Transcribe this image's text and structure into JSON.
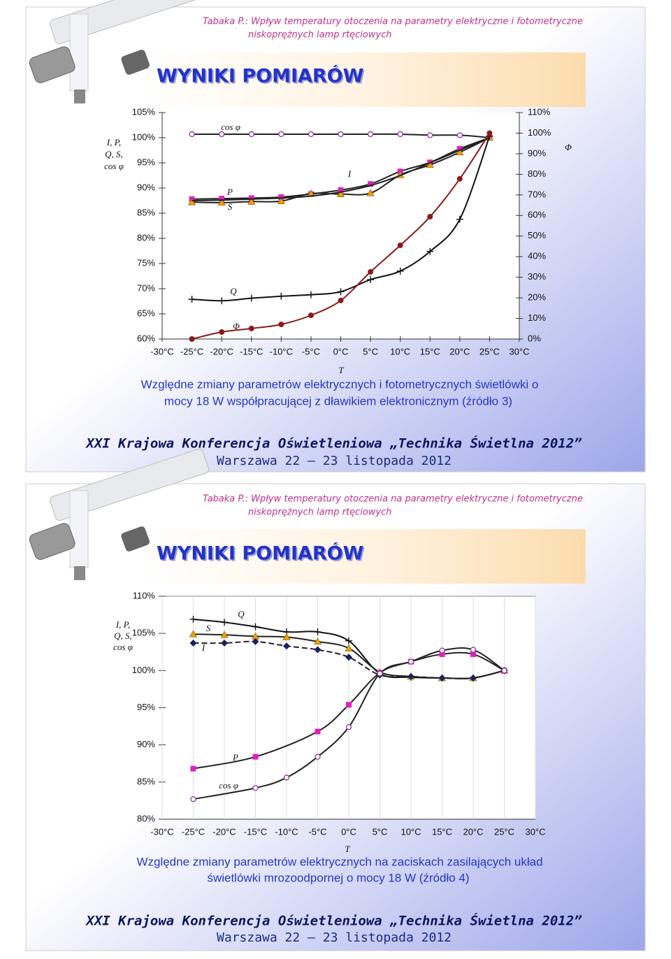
{
  "slides": [
    {
      "header": [
        "Tabaka P.: Wpływ temperatury otoczenia na parametry elektryczne i fotometryczne",
        "niskoprężnych lamp rtęciowych"
      ],
      "title": "WYNIKI POMIARÓW",
      "caption": [
        "Względne zmiany parametrów elektrycznych i fotometrycznych świetlówki o",
        "mocy 18 W współpracującej z dławikiem elektronicznym (źródło 3)"
      ],
      "footer": [
        "XXI Krajowa Konferencja Oświetleniowa „Technika Świetlna 2012”",
        "Warszawa 22 – 23 listopada 2012"
      ]
    },
    {
      "header": [
        "Tabaka P.: Wpływ temperatury otoczenia na parametry elektryczne i fotometryczne",
        "niskoprężnych lamp rtęciowych"
      ],
      "title": "WYNIKI POMIARÓW",
      "caption": [
        "Względne zmiany parametrów elektrycznych na zaciskach zasilających układ",
        "świetlówki mrozoodpornej o mocy 18 W (źródło 4)"
      ],
      "footer": [
        "XXI Krajowa Konferencja Oświetleniowa „Technika Świetlna 2012”",
        "Warszawa 22 – 23 listopada 2012"
      ]
    }
  ],
  "chart_data": [
    {
      "type": "line",
      "x_label": "T",
      "y_label": [
        "I, P,",
        "Q, S,",
        "cos φ"
      ],
      "y2_label": "Φ",
      "xlim": [
        -30,
        30
      ],
      "xticks": [
        {
          "value": -30,
          "label": "-30°C"
        },
        {
          "value": -25,
          "label": "-25°C"
        },
        {
          "value": -20,
          "label": "-20°C"
        },
        {
          "value": -15,
          "label": "-15°C"
        },
        {
          "value": -10,
          "label": "-10°C"
        },
        {
          "value": -5,
          "label": "-5°C"
        },
        {
          "value": 0,
          "label": "0°C"
        },
        {
          "value": 5,
          "label": "5°C"
        },
        {
          "value": 10,
          "label": "10°C"
        },
        {
          "value": 15,
          "label": "15°C"
        },
        {
          "value": 20,
          "label": "20°C"
        },
        {
          "value": 25,
          "label": "25°C"
        },
        {
          "value": 30,
          "label": "30°C"
        }
      ],
      "ylim": [
        60,
        105
      ],
      "yticks": [
        {
          "value": 60,
          "label": "60%"
        },
        {
          "value": 65,
          "label": "65%"
        },
        {
          "value": 70,
          "label": "70%"
        },
        {
          "value": 75,
          "label": "75%"
        },
        {
          "value": 80,
          "label": "80%"
        },
        {
          "value": 85,
          "label": "85%"
        },
        {
          "value": 90,
          "label": "90%"
        },
        {
          "value": 95,
          "label": "95%"
        },
        {
          "value": 100,
          "label": "100%"
        },
        {
          "value": 105,
          "label": "105%"
        }
      ],
      "y2lim": [
        0,
        110
      ],
      "y2ticks": [
        {
          "value": 0,
          "label": "0%"
        },
        {
          "value": 10,
          "label": "10%"
        },
        {
          "value": 20,
          "label": "20%"
        },
        {
          "value": 30,
          "label": "30%"
        },
        {
          "value": 40,
          "label": "40%"
        },
        {
          "value": 50,
          "label": "50%"
        },
        {
          "value": 60,
          "label": "60%"
        },
        {
          "value": 70,
          "label": "70%"
        },
        {
          "value": 80,
          "label": "80%"
        },
        {
          "value": 90,
          "label": "90%"
        },
        {
          "value": 100,
          "label": "100%"
        },
        {
          "value": 110,
          "label": "110%"
        }
      ],
      "series": [
        {
          "name": "cos φ",
          "color": "#8a3a9a",
          "line_color": "#222222",
          "marker": "circle",
          "x": [
            -25,
            -20,
            -15,
            -10,
            -5,
            0,
            5,
            10,
            15,
            20,
            25
          ],
          "values": [
            100.7,
            100.7,
            100.7,
            100.7,
            100.7,
            100.7,
            100.7,
            100.7,
            100.5,
            100.5,
            100
          ]
        },
        {
          "name": "P",
          "color": "#e020c0",
          "line_color": "#222222",
          "marker": "square",
          "x": [
            -25,
            -20,
            -15,
            -10,
            -5,
            0,
            5,
            10,
            15,
            20,
            25
          ],
          "values": [
            87.8,
            87.9,
            88.0,
            88.2,
            88.8,
            89.6,
            90.8,
            93.3,
            95.1,
            97.8,
            100
          ]
        },
        {
          "name": "S",
          "color": "#f0a000",
          "line_color": "#222222",
          "marker": "triangle",
          "x": [
            -25,
            -20,
            -15,
            -10,
            -5,
            0,
            5,
            10,
            15,
            20,
            25
          ],
          "values": [
            87.2,
            87.1,
            87.3,
            87.4,
            88.9,
            88.8,
            89.0,
            92.6,
            94.6,
            97.1,
            100
          ]
        },
        {
          "name": "I",
          "color": "#222222",
          "line_color": "#222222",
          "marker": "none",
          "x": [
            -25,
            -20,
            -15,
            -10,
            -5,
            0,
            5,
            10,
            15,
            20,
            25
          ],
          "values": [
            87.5,
            87.6,
            87.8,
            88.0,
            88.4,
            89.2,
            90.5,
            92.5,
            95,
            97.5,
            100
          ]
        },
        {
          "name": "Q",
          "color": "#111111",
          "line_color": "#111111",
          "marker": "plus",
          "x": [
            -25,
            -20,
            -15,
            -10,
            -5,
            0,
            5,
            10,
            15,
            20,
            25
          ],
          "values": [
            67.9,
            67.6,
            68.1,
            68.5,
            68.8,
            69.4,
            71.8,
            73.5,
            77.4,
            83.8,
            100.3
          ]
        },
        {
          "name": "Φ",
          "color": "#8b1a1a",
          "line_color": "#8b1a1a",
          "marker": "dot",
          "axis": "y2",
          "x": [
            -25,
            -20,
            -15,
            -10,
            -5,
            0,
            5,
            10,
            15,
            20,
            25
          ],
          "values": [
            0,
            3.4,
            5.1,
            7.1,
            11.5,
            18.7,
            32.6,
            45.5,
            59.4,
            77.8,
            100
          ]
        }
      ]
    },
    {
      "type": "line",
      "x_label": "T",
      "y_label": [
        "I, P,",
        "Q, S,",
        "cos φ"
      ],
      "xlim": [
        -30,
        30
      ],
      "xticks": [
        {
          "value": -30,
          "label": "-30°C"
        },
        {
          "value": -25,
          "label": "-25°C"
        },
        {
          "value": -20,
          "label": "-20°C"
        },
        {
          "value": -15,
          "label": "-15°C"
        },
        {
          "value": -10,
          "label": "-10°C"
        },
        {
          "value": -5,
          "label": "-5°C"
        },
        {
          "value": 0,
          "label": "0°C"
        },
        {
          "value": 5,
          "label": "5°C"
        },
        {
          "value": 10,
          "label": "10°C"
        },
        {
          "value": 15,
          "label": "15°C"
        },
        {
          "value": 20,
          "label": "20°C"
        },
        {
          "value": 25,
          "label": "25°C"
        },
        {
          "value": 30,
          "label": "30°C"
        }
      ],
      "ylim": [
        80,
        110
      ],
      "yticks": [
        {
          "value": 80,
          "label": "80%"
        },
        {
          "value": 85,
          "label": "85%"
        },
        {
          "value": 90,
          "label": "90%"
        },
        {
          "value": 95,
          "label": "95%"
        },
        {
          "value": 100,
          "label": "100%"
        },
        {
          "value": 105,
          "label": "105%"
        },
        {
          "value": 110,
          "label": "110%"
        }
      ],
      "series": [
        {
          "name": "Q",
          "color": "#111111",
          "line_color": "#111111",
          "marker": "plus",
          "x": [
            -25,
            -20,
            -15,
            -10,
            -5,
            0,
            5,
            10,
            15,
            20,
            25
          ],
          "values": [
            106.9,
            106.5,
            105.9,
            105.2,
            105.2,
            104.0,
            99.6,
            99.1,
            99.0,
            99.0,
            100
          ]
        },
        {
          "name": "S",
          "color": "#f0a000",
          "line_color": "#222222",
          "marker": "triangle",
          "x": [
            -25,
            -20,
            -15,
            -10,
            -5,
            0,
            5,
            10,
            15,
            20,
            25
          ],
          "values": [
            104.9,
            104.8,
            104.6,
            104.5,
            103.9,
            103.0,
            99.8,
            99.2,
            99.0,
            99.0,
            100
          ]
        },
        {
          "name": "I",
          "color": "#1a2060",
          "line_color": "#222222",
          "marker": "diamond",
          "dash": true,
          "x": [
            -25,
            -20,
            -15,
            -10,
            -5,
            0,
            5,
            10,
            15,
            20,
            25
          ],
          "values": [
            103.7,
            103.7,
            103.9,
            103.3,
            102.8,
            101.8,
            99.4,
            99.2,
            99.0,
            99.0,
            100
          ]
        },
        {
          "name": "P",
          "color": "#e020c0",
          "line_color": "#222222",
          "marker": "square",
          "x": [
            -25,
            -15,
            -5,
            0,
            5,
            10,
            15,
            20,
            25
          ],
          "values": [
            86.8,
            88.4,
            91.8,
            95.4,
            99.7,
            101.2,
            102.2,
            102.2,
            100
          ]
        },
        {
          "name": "cos φ",
          "color": "#8a3a9a",
          "line_color": "#222222",
          "marker": "circle",
          "x": [
            -25,
            -15,
            -10,
            -5,
            0,
            5,
            10,
            15,
            20,
            25
          ],
          "values": [
            82.7,
            84.2,
            85.6,
            88.4,
            92.4,
            99.6,
            101.2,
            102.7,
            102.8,
            100
          ]
        }
      ]
    }
  ]
}
